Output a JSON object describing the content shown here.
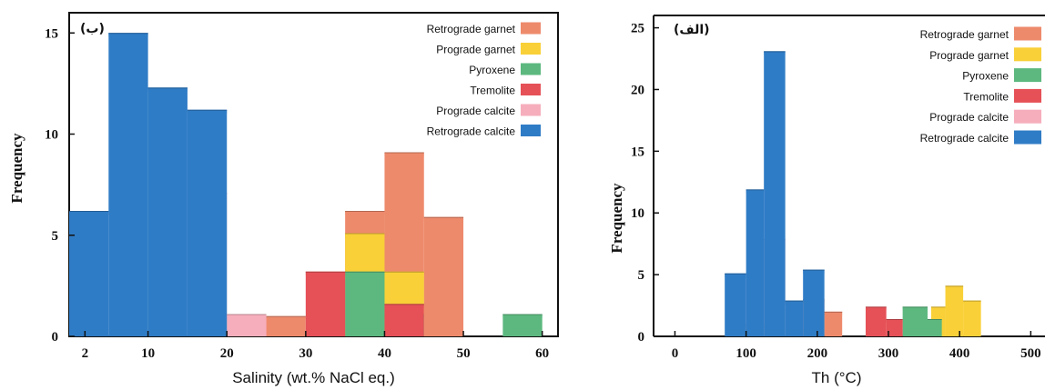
{
  "chart_data": [
    {
      "type": "bar",
      "panel_label": "(ب)",
      "xlabel": "Salinity (wt.% NaCl eq.)",
      "ylabel": "Frequency",
      "xlim": [
        0,
        62
      ],
      "ylim": [
        0,
        16
      ],
      "x_ticks": [
        2,
        10,
        20,
        30,
        40,
        50,
        60
      ],
      "y_ticks": [
        0,
        5,
        10,
        15
      ],
      "legend_position": "top-right",
      "series": [
        {
          "name": "Retrograde garnet",
          "color": "#ee8a6c",
          "bins": [
            [
              25,
              30,
              1
            ],
            [
              35,
              40,
              6.2
            ],
            [
              40,
              45,
              9.1
            ],
            [
              45,
              50,
              5.9
            ]
          ]
        },
        {
          "name": "Prograde garnet",
          "color": "#f9d038",
          "bins": [
            [
              35,
              40,
              5.1
            ],
            [
              40,
              45,
              3.2
            ]
          ]
        },
        {
          "name": "Pyroxene",
          "color": "#5cb87f",
          "bins": [
            [
              35,
              40,
              3.2
            ],
            [
              40,
              45,
              1.1
            ],
            [
              55,
              60,
              1.1
            ]
          ]
        },
        {
          "name": "Tremolite",
          "color": "#e55157",
          "bins": [
            [
              30,
              35,
              3.2
            ],
            [
              40,
              45,
              1.6
            ]
          ]
        },
        {
          "name": "Prograde calcite",
          "color": "#f6aebc",
          "bins": [
            [
              15,
              20,
              7.1
            ],
            [
              20,
              25,
              1.1
            ]
          ]
        },
        {
          "name": "Retrograde calcite",
          "color": "#2f7cc6",
          "bins": [
            [
              0,
              5,
              6.2
            ],
            [
              5,
              10,
              15.0
            ],
            [
              10,
              15,
              12.3
            ],
            [
              15,
              20,
              11.2
            ]
          ]
        }
      ]
    },
    {
      "type": "bar",
      "panel_label": "(الف)",
      "xlabel": "Th (°C)",
      "ylabel": "Frequency",
      "xlim": [
        -30,
        520
      ],
      "ylim": [
        0,
        26
      ],
      "x_ticks": [
        0,
        100,
        200,
        300,
        400,
        500
      ],
      "y_ticks": [
        0,
        5,
        10,
        15,
        20,
        25
      ],
      "legend_position": "top-right",
      "series": [
        {
          "name": "Retrograde garnet",
          "color": "#ee8a6c",
          "bins": [
            [
              180,
              210,
              3
            ],
            [
              210,
              235,
              2
            ]
          ]
        },
        {
          "name": "Prograde garnet",
          "color": "#f9d038",
          "bins": [
            [
              360,
              380,
              2.4
            ],
            [
              380,
              405,
              4.1
            ],
            [
              405,
              430,
              2.9
            ]
          ]
        },
        {
          "name": "Pyroxene",
          "color": "#5cb87f",
          "bins": [
            [
              320,
              355,
              2.4
            ],
            [
              355,
              375,
              1.4
            ]
          ]
        },
        {
          "name": "Tremolite",
          "color": "#e55157",
          "bins": [
            [
              268,
              297,
              2.4
            ],
            [
              297,
              320,
              1.4
            ]
          ]
        },
        {
          "name": "Prograde calcite",
          "color": "#f6aebc",
          "bins": [
            [
              100,
              125,
              1
            ],
            [
              125,
              155,
              7.9
            ]
          ]
        },
        {
          "name": "Retrograde calcite",
          "color": "#2f7cc6",
          "bins": [
            [
              70,
              100,
              5.1
            ],
            [
              100,
              125,
              11.9
            ],
            [
              125,
              155,
              23.1
            ],
            [
              155,
              180,
              2.9
            ],
            [
              180,
              210,
              5.4
            ]
          ]
        }
      ]
    }
  ]
}
